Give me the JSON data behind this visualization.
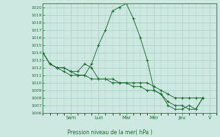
{
  "title": "",
  "xlabel": "Pression niveau de la mer( hPa )",
  "ylabel": "",
  "bg_color": "#cce8e0",
  "grid_color": "#a8ccc4",
  "line_color": "#1a6e2e",
  "marker_color": "#1a6e2e",
  "ylim": [
    1006,
    1020.5
  ],
  "yticks": [
    1006,
    1007,
    1008,
    1009,
    1010,
    1011,
    1012,
    1013,
    1014,
    1015,
    1016,
    1017,
    1018,
    1019,
    1020
  ],
  "day_labels": [
    "Sam",
    "Lun",
    "Mar",
    "Mer",
    "Jeu",
    "V"
  ],
  "day_positions": [
    2,
    4,
    6,
    8,
    10,
    12
  ],
  "series": [
    [
      0,
      1014,
      0.5,
      1012.5,
      1,
      1012,
      1.5,
      1012,
      2,
      1011.5,
      2.5,
      1011,
      3,
      1011,
      3.5,
      1012.5,
      4,
      1015,
      4.5,
      1017,
      5,
      1019.5,
      5.5,
      1020,
      6,
      1020.5,
      6.5,
      1018.5,
      7,
      1016,
      7.5,
      1013,
      8,
      1009,
      8.5,
      1008.5,
      9,
      1007,
      9.5,
      1006.5,
      10,
      1006.5,
      10.5,
      1007,
      11,
      1006.5,
      11.5,
      1008
    ],
    [
      0,
      1014,
      0.5,
      1012.5,
      1,
      1012,
      1.5,
      1012,
      2,
      1011.5,
      2.5,
      1011.5,
      3,
      1012.5,
      3.5,
      1012,
      4,
      1010.5,
      4.5,
      1010.5,
      5,
      1010.5,
      5.5,
      1010,
      6,
      1010,
      6.5,
      1010,
      7,
      1010,
      7.5,
      1010,
      8,
      1009.5,
      8.5,
      1009,
      9,
      1008.5,
      9.5,
      1008,
      10,
      1008,
      10.5,
      1008,
      11,
      1008,
      11.5,
      1008
    ],
    [
      0,
      1014,
      0.5,
      1012.5,
      1,
      1012,
      1.5,
      1011.5,
      2,
      1011,
      2.5,
      1011,
      3,
      1011,
      3.5,
      1010.5,
      4,
      1010.5,
      4.5,
      1010.5,
      5,
      1010,
      5.5,
      1010,
      6,
      1010,
      6.5,
      1009.5,
      7,
      1009.5,
      7.5,
      1009,
      8,
      1009,
      8.5,
      1008.5,
      9,
      1007.5,
      9.5,
      1007,
      10,
      1007,
      10.5,
      1006.5,
      11,
      1006.5,
      11.5,
      1008
    ]
  ]
}
